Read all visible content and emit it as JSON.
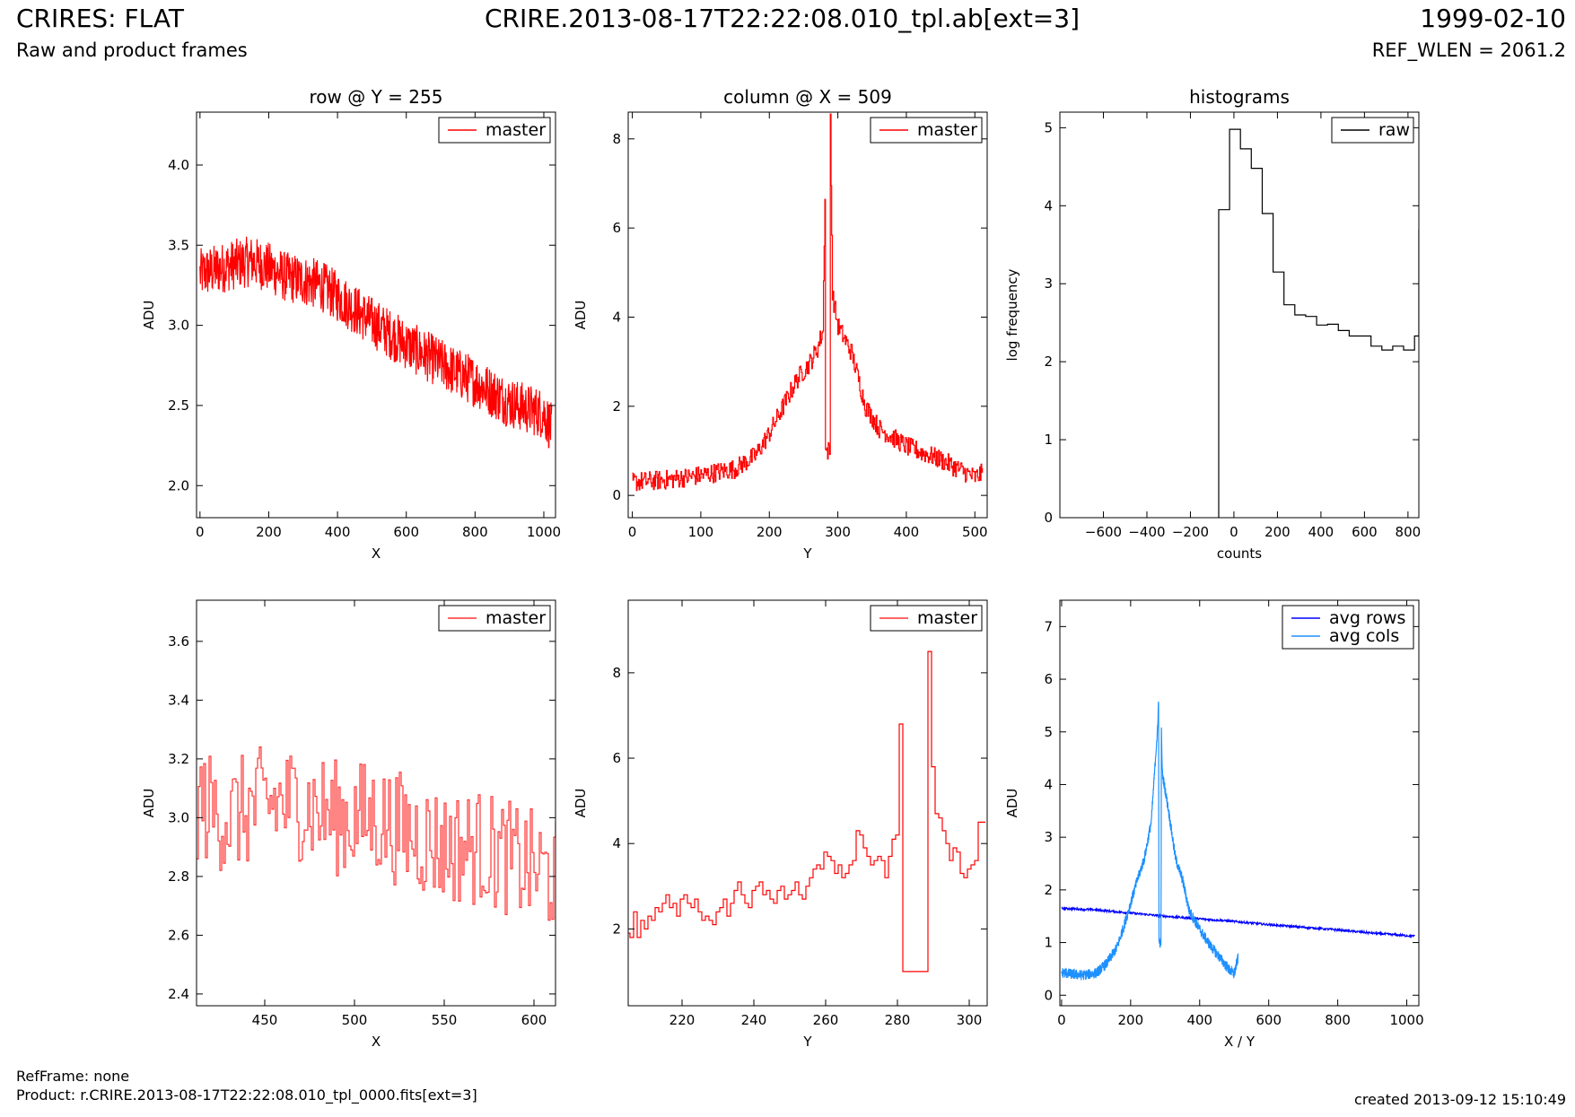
{
  "header": {
    "title_left": "CRIRES: FLAT",
    "title_center": "CRIRE.2013-08-17T22:22:08.010_tpl.ab[ext=3]",
    "title_right": "1999-02-10",
    "subtitle_left": "Raw and product frames",
    "subtitle_right": "REF_WLEN = 2061.2"
  },
  "footer": {
    "ref_frame": "RefFrame: none",
    "product": "Product: r.CRIRE.2013-08-17T22:22:08.010_tpl_0000.fits[ext=3]",
    "created": "created 2013-09-12 15:10:49"
  },
  "chart_data": [
    {
      "id": "row",
      "type": "line",
      "title": "row @ Y = 255",
      "xlabel": "X",
      "ylabel": "ADU",
      "xlim": [
        -10,
        1034
      ],
      "ylim": [
        1.8,
        4.33
      ],
      "xticks": [
        0,
        200,
        400,
        600,
        800,
        1000
      ],
      "xtick_labels": [
        "0",
        "200",
        "400",
        "600",
        "800",
        "1000"
      ],
      "yticks": [
        2.0,
        2.5,
        3.0,
        3.5,
        4.0
      ],
      "ytick_labels": [
        "2.0",
        "2.5",
        "3.0",
        "3.5",
        "4.0"
      ],
      "legend": {
        "position": "top-right",
        "entries": [
          {
            "label": "master",
            "color": "#ff0000"
          }
        ]
      },
      "series": [
        {
          "name": "master",
          "color": "#ff0000",
          "kind": "noisy",
          "x": [
            0,
            50,
            100,
            150,
            200,
            250,
            300,
            350,
            400,
            450,
            500,
            550,
            600,
            650,
            700,
            750,
            800,
            850,
            900,
            950,
            1000,
            1023
          ],
          "y": [
            3.32,
            3.35,
            3.38,
            3.4,
            3.36,
            3.3,
            3.28,
            3.25,
            3.18,
            3.1,
            3.02,
            2.95,
            2.88,
            2.82,
            2.76,
            2.7,
            2.65,
            2.58,
            2.52,
            2.48,
            2.45,
            2.35
          ],
          "amp": 0.16
        }
      ]
    },
    {
      "id": "col",
      "type": "line",
      "title": "column @ X = 509",
      "xlabel": "Y",
      "ylabel": "ADU",
      "xlim": [
        -6,
        518
      ],
      "ylim": [
        -0.5,
        8.6
      ],
      "xticks": [
        0,
        100,
        200,
        300,
        400,
        500
      ],
      "xtick_labels": [
        "0",
        "100",
        "200",
        "300",
        "400",
        "500"
      ],
      "yticks": [
        0,
        2,
        4,
        6,
        8
      ],
      "ytick_labels": [
        "0",
        "2",
        "4",
        "6",
        "8"
      ],
      "legend": {
        "position": "top-right",
        "entries": [
          {
            "label": "master",
            "color": "#ff0000"
          }
        ]
      },
      "series": [
        {
          "name": "master",
          "color": "#ff0000",
          "kind": "step-noisy",
          "x": [
            0,
            50,
            100,
            150,
            180,
            200,
            220,
            240,
            260,
            270,
            278,
            281,
            282,
            288,
            289,
            292,
            300,
            320,
            340,
            360,
            400,
            450,
            500,
            511
          ],
          "y": [
            0.3,
            0.35,
            0.45,
            0.6,
            0.9,
            1.4,
            2.0,
            2.6,
            3.0,
            3.3,
            3.7,
            6.8,
            1.0,
            1.0,
            8.5,
            4.5,
            3.8,
            3.2,
            2.0,
            1.5,
            1.1,
            0.8,
            0.4,
            0.5
          ],
          "amp": 0.22
        }
      ]
    },
    {
      "id": "hist",
      "type": "histogram",
      "title": "histograms",
      "xlabel": "counts",
      "ylabel": "log frequency",
      "xlim": [
        -800,
        850
      ],
      "ylim": [
        0,
        5.2
      ],
      "xticks": [
        -600,
        -400,
        -200,
        0,
        200,
        400,
        600,
        800
      ],
      "xtick_labels": [
        "−600",
        "−400",
        "−200",
        "0",
        "200",
        "400",
        "600",
        "800"
      ],
      "yticks": [
        0,
        1,
        2,
        3,
        4,
        5
      ],
      "ytick_labels": [
        "0",
        "1",
        "2",
        "3",
        "4",
        "5"
      ],
      "legend": {
        "position": "top-right",
        "entries": [
          {
            "label": "raw",
            "color": "#000000"
          }
        ]
      },
      "series": [
        {
          "name": "raw",
          "color": "#000000",
          "kind": "hist",
          "edges": [
            -70,
            -20,
            30,
            80,
            130,
            180,
            230,
            280,
            330,
            380,
            430,
            480,
            530,
            580,
            630,
            680,
            730,
            780,
            830,
            850
          ],
          "counts": [
            3.95,
            4.98,
            4.73,
            4.48,
            3.9,
            3.15,
            2.73,
            2.6,
            2.58,
            2.47,
            2.48,
            2.4,
            2.33,
            2.33,
            2.2,
            2.15,
            2.2,
            2.15,
            2.33,
            3.7
          ]
        }
      ]
    },
    {
      "id": "row-zoom",
      "type": "line",
      "title": "",
      "xlabel": "X",
      "ylabel": "ADU",
      "xlim": [
        412,
        612
      ],
      "ylim": [
        2.36,
        3.74
      ],
      "xticks": [
        450,
        500,
        550,
        600
      ],
      "xtick_labels": [
        "450",
        "500",
        "550",
        "600"
      ],
      "yticks": [
        2.4,
        2.6,
        2.8,
        3.0,
        3.2,
        3.4,
        3.6
      ],
      "ytick_labels": [
        "2.4",
        "2.6",
        "2.8",
        "3.0",
        "3.2",
        "3.4",
        "3.6"
      ],
      "legend": {
        "position": "top-right",
        "entries": [
          {
            "label": "master",
            "color": "#ff3333"
          }
        ]
      },
      "series": [
        {
          "name": "master",
          "color": "#ff3333",
          "kind": "step-noisy",
          "x": [
            412,
            430,
            450,
            470,
            490,
            510,
            530,
            550,
            570,
            590,
            612
          ],
          "y": [
            3.05,
            3.0,
            3.05,
            3.05,
            3.0,
            3.0,
            2.95,
            2.9,
            2.9,
            2.85,
            2.8
          ],
          "amp": 0.2
        }
      ]
    },
    {
      "id": "col-zoom",
      "type": "line",
      "title": "",
      "xlabel": "Y",
      "ylabel": "ADU",
      "xlim": [
        205,
        305
      ],
      "ylim": [
        0.2,
        9.7
      ],
      "xticks": [
        220,
        240,
        260,
        280,
        300
      ],
      "xtick_labels": [
        "220",
        "240",
        "260",
        "280",
        "300"
      ],
      "yticks": [
        2,
        4,
        6,
        8
      ],
      "ytick_labels": [
        "2",
        "4",
        "6",
        "8"
      ],
      "legend": {
        "position": "top-right",
        "entries": [
          {
            "label": "master",
            "color": "#ff3333"
          }
        ]
      },
      "series": [
        {
          "name": "master",
          "color": "#ff0000",
          "kind": "step",
          "x": [
            205,
            206,
            207,
            208,
            209,
            210,
            211,
            212,
            213,
            214,
            215,
            216,
            217,
            218,
            219,
            220,
            221,
            222,
            223,
            224,
            225,
            226,
            227,
            228,
            229,
            230,
            231,
            232,
            233,
            234,
            235,
            236,
            237,
            238,
            239,
            240,
            241,
            242,
            243,
            244,
            245,
            246,
            247,
            248,
            249,
            250,
            251,
            252,
            253,
            254,
            255,
            256,
            257,
            258,
            259,
            260,
            261,
            262,
            263,
            264,
            265,
            266,
            267,
            268,
            269,
            270,
            271,
            272,
            273,
            274,
            275,
            276,
            277,
            278,
            279,
            280,
            281,
            282,
            283,
            284,
            285,
            286,
            287,
            288,
            289,
            290,
            291,
            292,
            293,
            294,
            295,
            296,
            297,
            298,
            299,
            300,
            301,
            302,
            303,
            304
          ],
          "y": [
            1.9,
            1.8,
            2.4,
            1.8,
            2.2,
            2.0,
            2.3,
            2.2,
            2.5,
            2.4,
            2.6,
            2.8,
            2.5,
            2.6,
            2.3,
            2.7,
            2.8,
            2.6,
            2.5,
            2.7,
            2.4,
            2.2,
            2.3,
            2.2,
            2.1,
            2.4,
            2.5,
            2.7,
            2.3,
            2.6,
            2.9,
            3.1,
            2.8,
            2.6,
            2.5,
            2.9,
            3.0,
            3.1,
            2.8,
            2.9,
            2.7,
            2.6,
            2.9,
            3.0,
            2.7,
            2.8,
            2.9,
            3.1,
            2.8,
            2.7,
            3.0,
            3.2,
            3.4,
            3.5,
            3.4,
            3.8,
            3.7,
            3.6,
            3.3,
            3.5,
            3.2,
            3.3,
            3.5,
            3.6,
            4.3,
            4.2,
            3.9,
            3.7,
            3.5,
            3.6,
            3.7,
            3.6,
            3.2,
            3.7,
            4.1,
            4.2,
            6.8,
            1.0,
            1.0,
            1.0,
            1.0,
            1.0,
            1.0,
            1.0,
            8.5,
            5.8,
            4.7,
            4.6,
            4.3,
            4.0,
            3.6,
            3.9,
            3.8,
            3.3,
            3.2,
            3.4,
            3.5,
            3.6,
            4.5,
            4.5
          ]
        }
      ]
    },
    {
      "id": "avg",
      "type": "line",
      "title": "",
      "xlabel": "X / Y",
      "ylabel": "ADU",
      "xlim": [
        -5,
        1035
      ],
      "ylim": [
        -0.2,
        7.5
      ],
      "xticks": [
        0,
        200,
        400,
        600,
        800,
        1000
      ],
      "xtick_labels": [
        "0",
        "200",
        "400",
        "600",
        "800",
        "1000"
      ],
      "yticks": [
        0,
        1,
        2,
        3,
        4,
        5,
        6,
        7
      ],
      "ytick_labels": [
        "0",
        "1",
        "2",
        "3",
        "4",
        "5",
        "6",
        "7"
      ],
      "legend": {
        "position": "top-right",
        "entries": [
          {
            "label": "avg rows",
            "color": "#0000ff"
          },
          {
            "label": "avg cols",
            "color": "#1e90ff"
          }
        ]
      },
      "series": [
        {
          "name": "avg rows",
          "color": "#0000ff",
          "kind": "noisy",
          "x": [
            0,
            100,
            200,
            300,
            400,
            500,
            600,
            700,
            800,
            900,
            1023
          ],
          "y": [
            1.65,
            1.62,
            1.56,
            1.5,
            1.45,
            1.4,
            1.34,
            1.29,
            1.24,
            1.18,
            1.12
          ],
          "amp": 0.02
        },
        {
          "name": "avg cols",
          "color": "#1e90ff",
          "kind": "noisy",
          "x": [
            0,
            30,
            60,
            100,
            130,
            160,
            180,
            200,
            220,
            240,
            260,
            275,
            279,
            281,
            282,
            288,
            289,
            292,
            300,
            310,
            330,
            350,
            370,
            400,
            430,
            460,
            490,
            500,
            511
          ],
          "y": [
            0.43,
            0.4,
            0.38,
            0.42,
            0.6,
            0.9,
            1.3,
            1.75,
            2.2,
            2.6,
            3.3,
            4.8,
            5.1,
            5.85,
            1.0,
            1.0,
            5.0,
            4.2,
            3.9,
            3.5,
            2.6,
            2.2,
            1.6,
            1.25,
            0.95,
            0.7,
            0.45,
            0.4,
            0.7
          ],
          "amp": 0.1
        }
      ]
    }
  ]
}
